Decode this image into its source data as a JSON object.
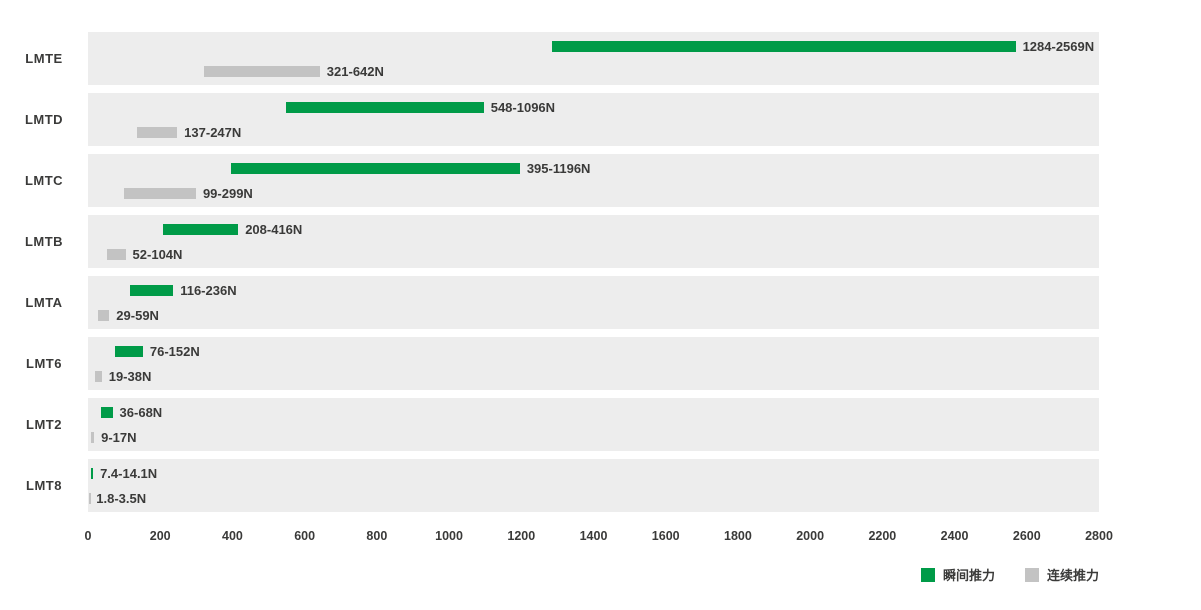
{
  "colors": {
    "instant": "#009b48",
    "continuous": "#c3c3c3",
    "band_background": "#ededed",
    "text": "#3a3a39"
  },
  "legend": {
    "items": [
      {
        "label": "瞬间推力",
        "color_key": "instant"
      },
      {
        "label": "连续推力",
        "color_key": "continuous"
      }
    ]
  },
  "chart_data": {
    "type": "bar",
    "orientation": "horizontal-range",
    "title": "",
    "xlabel": "",
    "ylabel": "",
    "unit": "N",
    "xlim": [
      0,
      2800
    ],
    "x_ticks": [
      0,
      200,
      400,
      600,
      800,
      1000,
      1200,
      1400,
      1600,
      1800,
      2000,
      2200,
      2400,
      2600,
      2800
    ],
    "grid": false,
    "legend_position": "bottom-right",
    "categories": [
      "LMTE",
      "LMTD",
      "LMTC",
      "LMTB",
      "LMTA",
      "LMT6",
      "LMT2",
      "LMT8"
    ],
    "series": [
      {
        "name": "瞬间推力",
        "color_key": "instant",
        "ranges": [
          [
            1284,
            2569
          ],
          [
            548,
            1096
          ],
          [
            395,
            1196
          ],
          [
            208,
            416
          ],
          [
            116,
            236
          ],
          [
            76,
            152
          ],
          [
            36,
            68
          ],
          [
            7.4,
            14.1
          ]
        ],
        "labels": [
          "1284-2569N",
          "548-1096N",
          "395-1196N",
          "208-416N",
          "116-236N",
          "76-152N",
          "36-68N",
          "7.4-14.1N"
        ]
      },
      {
        "name": "连续推力",
        "color_key": "continuous",
        "ranges": [
          [
            321,
            642
          ],
          [
            137,
            247
          ],
          [
            99,
            299
          ],
          [
            52,
            104
          ],
          [
            29,
            59
          ],
          [
            19,
            38
          ],
          [
            9,
            17
          ],
          [
            1.8,
            3.5
          ]
        ],
        "labels": [
          "321-642N",
          "137-247N",
          "99-299N",
          "52-104N",
          "29-59N",
          "19-38N",
          "9-17N",
          "1.8-3.5N"
        ]
      }
    ]
  }
}
